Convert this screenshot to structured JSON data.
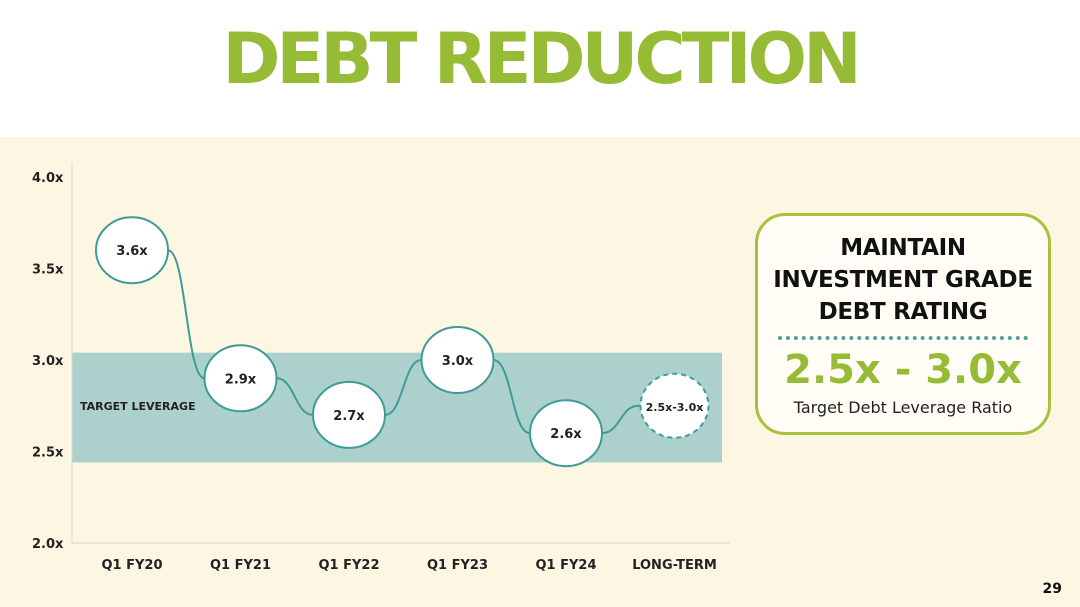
{
  "title": "DEBT REDUCTION",
  "page_number": "29",
  "chart_data": {
    "type": "line",
    "categories": [
      "Q1 FY20",
      "Q1 FY21",
      "Q1 FY22",
      "Q1 FY23",
      "Q1 FY24",
      "LONG-TERM"
    ],
    "series": [
      {
        "values": [
          3.6,
          2.9,
          2.7,
          3.0,
          2.6,
          2.75
        ],
        "labels": [
          "3.6x",
          "2.9x",
          "2.7x",
          "3.0x",
          "2.6x",
          "2.5x-3.0x"
        ]
      }
    ],
    "yticks": [
      "2.0x",
      "2.5x",
      "3.0x",
      "3.5x",
      "4.0x"
    ],
    "ylim": [
      2.0,
      4.0
    ],
    "target_band": {
      "label": "TARGET LEVERAGE",
      "range": [
        2.44,
        3.04
      ],
      "color": "#acd1cc"
    },
    "line_color": "#3f9b98",
    "grid": false,
    "legend": "none"
  },
  "callout": {
    "heading_lines": [
      "MAINTAIN",
      "INVESTMENT GRADE",
      "DEBT RATING"
    ],
    "range": "2.5x - 3.0x",
    "subtitle": "Target Debt Leverage Ratio",
    "border_color": "#a7c13b",
    "accent_color": "#96bb34"
  }
}
